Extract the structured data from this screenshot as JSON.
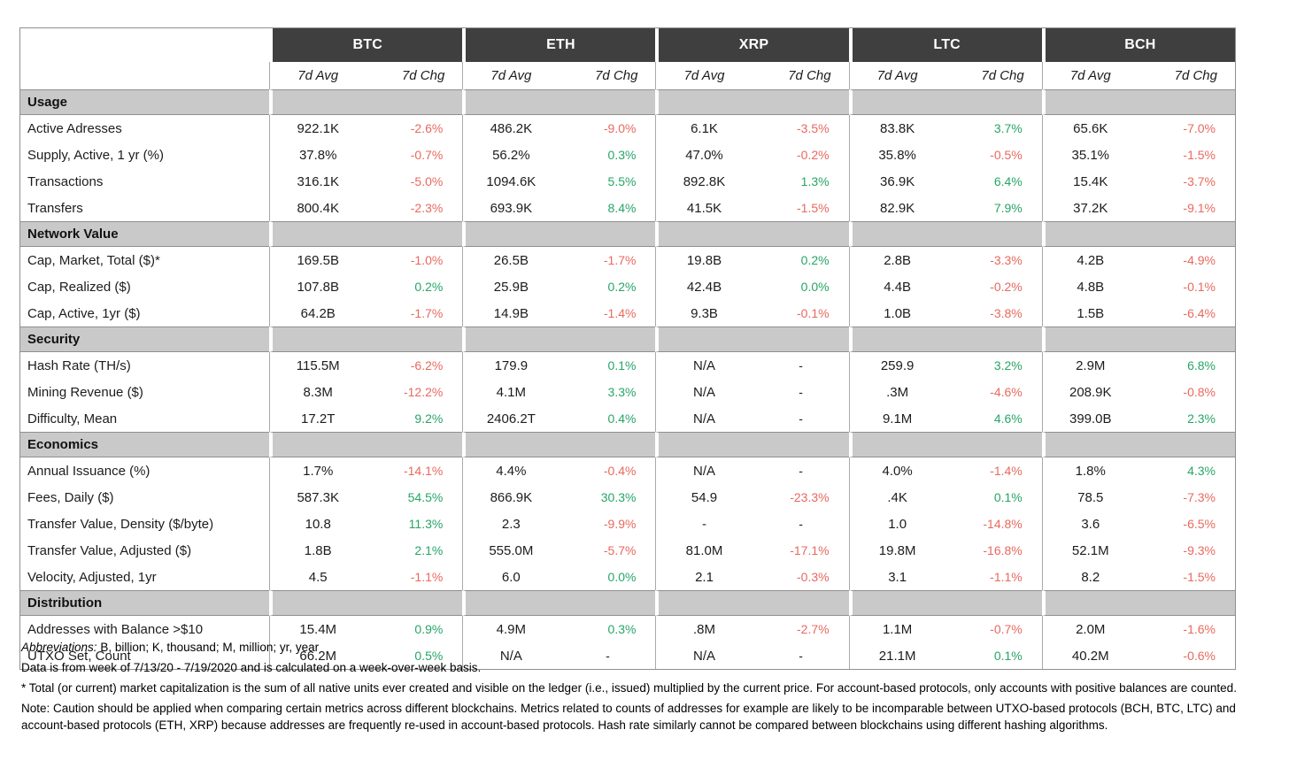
{
  "colors": {
    "header_bg": "#3f3f3f",
    "header_text": "#ffffff",
    "section_bg": "#c9c9c9",
    "border": "#8f8f8f",
    "positive": "#27a567",
    "negative": "#e8695e"
  },
  "table": {
    "coins": [
      "BTC",
      "ETH",
      "XRP",
      "LTC",
      "BCH"
    ],
    "subheaders": {
      "avg": "7d Avg",
      "chg": "7d Chg"
    },
    "sections": [
      {
        "title": "Usage",
        "rows": [
          {
            "label": "Active Adresses",
            "cells": [
              {
                "avg": "922.1K",
                "chg": "-2.6%"
              },
              {
                "avg": "486.2K",
                "chg": "-9.0%"
              },
              {
                "avg": "6.1K",
                "chg": "-3.5%"
              },
              {
                "avg": "83.8K",
                "chg": "3.7%"
              },
              {
                "avg": "65.6K",
                "chg": "-7.0%"
              }
            ]
          },
          {
            "label": "Supply, Active, 1 yr (%)",
            "cells": [
              {
                "avg": "37.8%",
                "chg": "-0.7%"
              },
              {
                "avg": "56.2%",
                "chg": "0.3%"
              },
              {
                "avg": "47.0%",
                "chg": "-0.2%"
              },
              {
                "avg": "35.8%",
                "chg": "-0.5%"
              },
              {
                "avg": "35.1%",
                "chg": "-1.5%"
              }
            ]
          },
          {
            "label": "Transactions",
            "cells": [
              {
                "avg": "316.1K",
                "chg": "-5.0%"
              },
              {
                "avg": "1094.6K",
                "chg": "5.5%"
              },
              {
                "avg": "892.8K",
                "chg": "1.3%"
              },
              {
                "avg": "36.9K",
                "chg": "6.4%"
              },
              {
                "avg": "15.4K",
                "chg": "-3.7%"
              }
            ]
          },
          {
            "label": "Transfers",
            "cells": [
              {
                "avg": "800.4K",
                "chg": "-2.3%"
              },
              {
                "avg": "693.9K",
                "chg": "8.4%"
              },
              {
                "avg": "41.5K",
                "chg": "-1.5%"
              },
              {
                "avg": "82.9K",
                "chg": "7.9%"
              },
              {
                "avg": "37.2K",
                "chg": "-9.1%"
              }
            ]
          }
        ]
      },
      {
        "title": "Network Value",
        "rows": [
          {
            "label": "Cap, Market, Total ($)*",
            "cells": [
              {
                "avg": "169.5B",
                "chg": "-1.0%"
              },
              {
                "avg": "26.5B",
                "chg": "-1.7%"
              },
              {
                "avg": "19.8B",
                "chg": "0.2%"
              },
              {
                "avg": "2.8B",
                "chg": "-3.3%"
              },
              {
                "avg": "4.2B",
                "chg": "-4.9%"
              }
            ]
          },
          {
            "label": "Cap, Realized ($)",
            "cells": [
              {
                "avg": "107.8B",
                "chg": "0.2%"
              },
              {
                "avg": "25.9B",
                "chg": "0.2%"
              },
              {
                "avg": "42.4B",
                "chg": "0.0%"
              },
              {
                "avg": "4.4B",
                "chg": "-0.2%"
              },
              {
                "avg": "4.8B",
                "chg": "-0.1%"
              }
            ]
          },
          {
            "label": "Cap, Active, 1yr ($)",
            "cells": [
              {
                "avg": "64.2B",
                "chg": "-1.7%"
              },
              {
                "avg": "14.9B",
                "chg": "-1.4%"
              },
              {
                "avg": "9.3B",
                "chg": "-0.1%"
              },
              {
                "avg": "1.0B",
                "chg": "-3.8%"
              },
              {
                "avg": "1.5B",
                "chg": "-6.4%"
              }
            ]
          }
        ]
      },
      {
        "title": "Security",
        "rows": [
          {
            "label": "Hash Rate (TH/s)",
            "cells": [
              {
                "avg": "115.5M",
                "chg": "-6.2%"
              },
              {
                "avg": "179.9",
                "chg": "0.1%"
              },
              {
                "avg": "N/A",
                "chg": "-"
              },
              {
                "avg": "259.9",
                "chg": "3.2%"
              },
              {
                "avg": "2.9M",
                "chg": "6.8%"
              }
            ]
          },
          {
            "label": "Mining Revenue ($)",
            "cells": [
              {
                "avg": "8.3M",
                "chg": "-12.2%"
              },
              {
                "avg": "4.1M",
                "chg": "3.3%"
              },
              {
                "avg": "N/A",
                "chg": "-"
              },
              {
                "avg": ".3M",
                "chg": "-4.6%"
              },
              {
                "avg": "208.9K",
                "chg": "-0.8%"
              }
            ]
          },
          {
            "label": "Difficulty, Mean",
            "cells": [
              {
                "avg": "17.2T",
                "chg": "9.2%"
              },
              {
                "avg": "2406.2T",
                "chg": "0.4%"
              },
              {
                "avg": "N/A",
                "chg": "-"
              },
              {
                "avg": "9.1M",
                "chg": "4.6%"
              },
              {
                "avg": "399.0B",
                "chg": "2.3%"
              }
            ]
          }
        ]
      },
      {
        "title": "Economics",
        "rows": [
          {
            "label": "Annual Issuance (%)",
            "cells": [
              {
                "avg": "1.7%",
                "chg": "-14.1%"
              },
              {
                "avg": "4.4%",
                "chg": "-0.4%"
              },
              {
                "avg": "N/A",
                "chg": "-"
              },
              {
                "avg": "4.0%",
                "chg": "-1.4%"
              },
              {
                "avg": "1.8%",
                "chg": "4.3%"
              }
            ]
          },
          {
            "label": "Fees, Daily ($)",
            "cells": [
              {
                "avg": "587.3K",
                "chg": "54.5%"
              },
              {
                "avg": "866.9K",
                "chg": "30.3%"
              },
              {
                "avg": "54.9",
                "chg": "-23.3%"
              },
              {
                "avg": ".4K",
                "chg": "0.1%"
              },
              {
                "avg": "78.5",
                "chg": "-7.3%"
              }
            ]
          },
          {
            "label": "Transfer Value, Density ($/byte)",
            "cells": [
              {
                "avg": "10.8",
                "chg": "11.3%"
              },
              {
                "avg": "2.3",
                "chg": "-9.9%"
              },
              {
                "avg": "-",
                "chg": "-"
              },
              {
                "avg": "1.0",
                "chg": "-14.8%"
              },
              {
                "avg": "3.6",
                "chg": "-6.5%"
              }
            ]
          },
          {
            "label": "Transfer Value, Adjusted ($)",
            "cells": [
              {
                "avg": "1.8B",
                "chg": "2.1%"
              },
              {
                "avg": "555.0M",
                "chg": "-5.7%"
              },
              {
                "avg": "81.0M",
                "chg": "-17.1%"
              },
              {
                "avg": "19.8M",
                "chg": "-16.8%"
              },
              {
                "avg": "52.1M",
                "chg": "-9.3%"
              }
            ]
          },
          {
            "label": "Velocity, Adjusted, 1yr",
            "cells": [
              {
                "avg": "4.5",
                "chg": "-1.1%"
              },
              {
                "avg": "6.0",
                "chg": "0.0%"
              },
              {
                "avg": "2.1",
                "chg": "-0.3%"
              },
              {
                "avg": "3.1",
                "chg": "-1.1%"
              },
              {
                "avg": "8.2",
                "chg": "-1.5%"
              }
            ]
          }
        ]
      },
      {
        "title": "Distribution",
        "rows": [
          {
            "label": "Addresses with Balance >$10",
            "cells": [
              {
                "avg": "15.4M",
                "chg": "0.9%"
              },
              {
                "avg": "4.9M",
                "chg": "0.3%"
              },
              {
                "avg": ".8M",
                "chg": "-2.7%"
              },
              {
                "avg": "1.1M",
                "chg": "-0.7%"
              },
              {
                "avg": "2.0M",
                "chg": "-1.6%"
              }
            ]
          },
          {
            "label": "UTXO Set, Count",
            "cells": [
              {
                "avg": "66.2M",
                "chg": "0.5%"
              },
              {
                "avg": "N/A",
                "chg": "-"
              },
              {
                "avg": "N/A",
                "chg": "-"
              },
              {
                "avg": "21.1M",
                "chg": "0.1%"
              },
              {
                "avg": "40.2M",
                "chg": "-0.6%"
              }
            ]
          }
        ]
      }
    ]
  },
  "footnotes": {
    "abbreviations_label": "Abbreviations:",
    "abbreviations_rest": " B, billion; K, thousand; M, million; yr, year",
    "data_week": "Data is from week of 7/13/20 - 7/19/2020 and is calculated on a week-over-week basis.",
    "asterisk": "* Total (or current) market capitalization is the sum of all native units ever created and visible on the ledger (i.e., issued) multiplied by the current price. For account-based protocols, only accounts with positive balances are counted.",
    "note": "Note: Caution should be applied when comparing certain metrics across different blockchains. Metrics related to counts of addresses for example are likely to be incomparable between UTXO-based protocols (BCH, BTC, LTC) and account-based protocols (ETH, XRP) because addresses are frequently re-used in account-based protocols. Hash rate similarly cannot be compared between blockchains using different hashing algorithms."
  }
}
